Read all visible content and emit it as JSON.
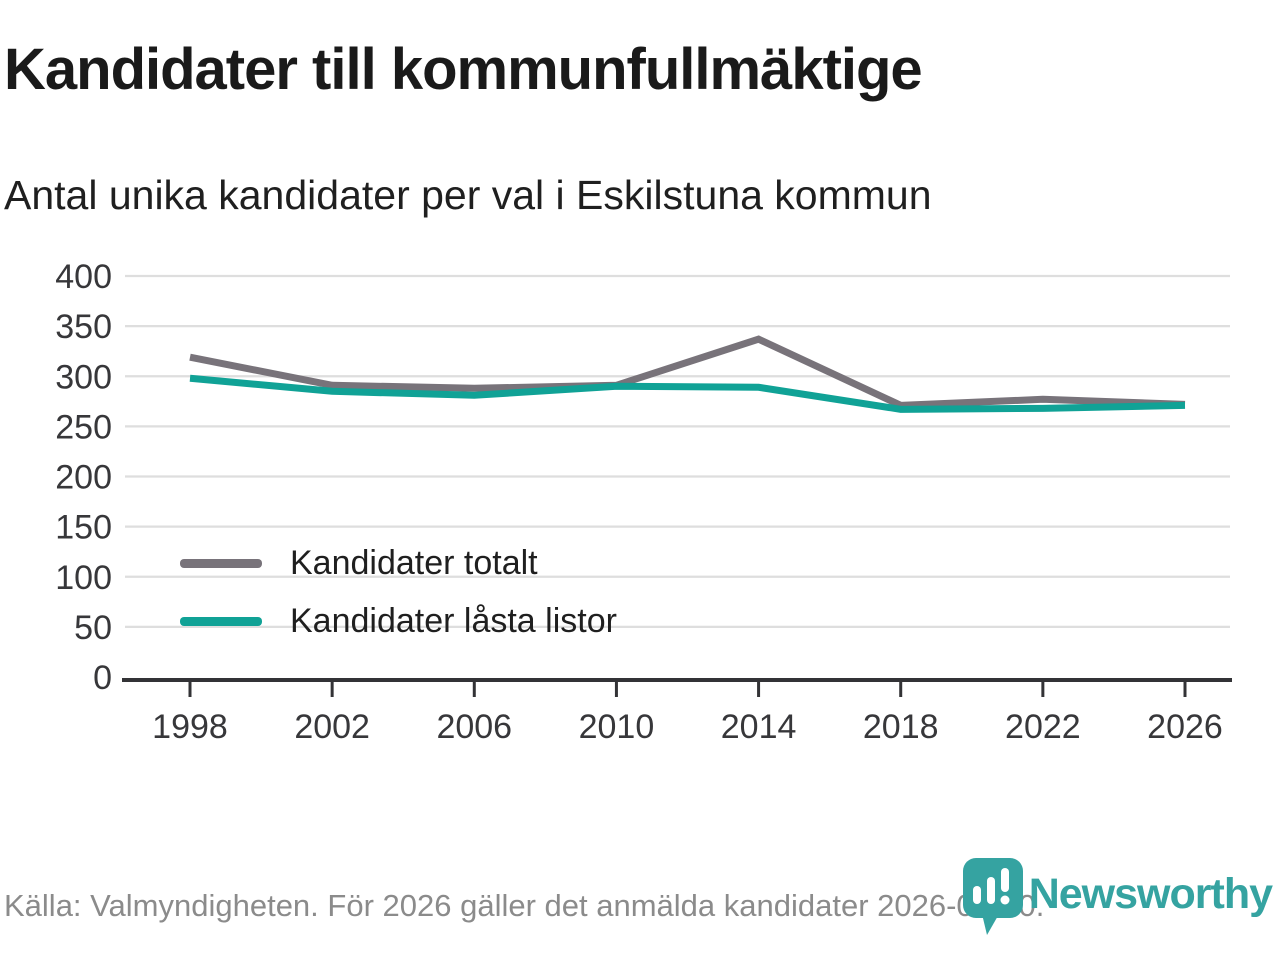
{
  "header": {
    "title": "Kandidater till kommunfullmäktige",
    "subtitle": "Antal unika kandidater per val i Eskilstuna kommun"
  },
  "chart_data": {
    "type": "line",
    "title": "Kandidater till kommunfullmäktige",
    "subtitle": "Antal unika kandidater per val i Eskilstuna kommun",
    "x": [
      1998,
      2002,
      2006,
      2010,
      2014,
      2018,
      2022,
      2026
    ],
    "series": [
      {
        "name": "Kandidater totalt",
        "color": "#78737a",
        "values": [
          319,
          291,
          288,
          291,
          337,
          271,
          277,
          272
        ]
      },
      {
        "name": "Kandidater låsta listor",
        "color": "#10a296",
        "values": [
          298,
          285,
          281,
          290,
          289,
          267,
          268,
          271
        ]
      }
    ],
    "xlabel": "",
    "ylabel": "",
    "ylim": [
      0,
      400
    ],
    "yticks": [
      0,
      50,
      100,
      150,
      200,
      250,
      300,
      350,
      400
    ],
    "grid": "horizontal",
    "gridline_color": "#dedede",
    "axis_color": "#333336",
    "tick_label_color": "#37373a",
    "legend_position": "inside-left-middle"
  },
  "footer": {
    "source": "Källa: Valmyndigheten. För 2026 gäller det anmälda kandidater 2026-04-10."
  },
  "branding": {
    "name": "Newsworthy",
    "color": "#35a3a1"
  }
}
